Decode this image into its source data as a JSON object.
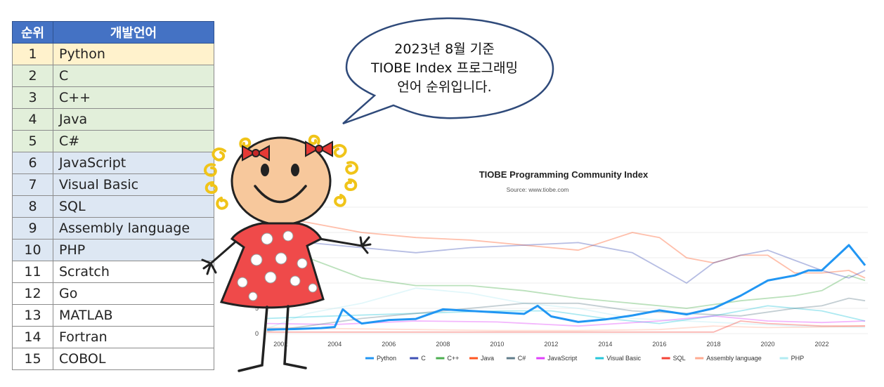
{
  "table": {
    "headers": {
      "rank": "순위",
      "language": "개발언어"
    },
    "rows": [
      {
        "rank": "1",
        "language": "Python"
      },
      {
        "rank": "2",
        "language": "C"
      },
      {
        "rank": "3",
        "language": "C++"
      },
      {
        "rank": "4",
        "language": "Java"
      },
      {
        "rank": "5",
        "language": "C#"
      },
      {
        "rank": "6",
        "language": "JavaScript"
      },
      {
        "rank": "7",
        "language": "Visual Basic"
      },
      {
        "rank": "8",
        "language": "SQL"
      },
      {
        "rank": "9",
        "language": "Assembly language"
      },
      {
        "rank": "10",
        "language": "PHP"
      },
      {
        "rank": "11",
        "language": "Scratch"
      },
      {
        "rank": "12",
        "language": "Go"
      },
      {
        "rank": "13",
        "language": "MATLAB"
      },
      {
        "rank": "14",
        "language": "Fortran"
      },
      {
        "rank": "15",
        "language": "COBOL"
      }
    ]
  },
  "bubble": {
    "lines": [
      "2023년 8월 기준",
      "TIOBE Index 프로그래밍",
      "언어 순위입니다."
    ]
  },
  "chart_data": {
    "type": "line",
    "title": "TIOBE Programming Community Index",
    "subtitle": "Source: www.tiobe.com",
    "xlabel": "",
    "ylabel": "",
    "x_ticks": [
      "2002",
      "2004",
      "2006",
      "2008",
      "2010",
      "2012",
      "2014",
      "2016",
      "2018",
      "2020",
      "2022"
    ],
    "y_ticks": [
      "0",
      "5"
    ],
    "xlim": [
      2001.5,
      2023.7
    ],
    "ylim": [
      0,
      25
    ],
    "legend_position": "bottom",
    "series": [
      {
        "name": "Python",
        "color": "#2196f3",
        "x": [
          2001.5,
          2002.5,
          2003.5,
          2004.0,
          2004.3,
          2004.7,
          2005.0,
          2006.0,
          2007.0,
          2008.0,
          2009.0,
          2010.0,
          2011.0,
          2011.5,
          2012.0,
          2013.0,
          2014.0,
          2015.0,
          2016.0,
          2017.0,
          2018.0,
          2019.0,
          2020.0,
          2021.0,
          2021.5,
          2022.0,
          2022.5,
          2023.0,
          2023.3,
          2023.6
        ],
        "y": [
          0.8,
          0.9,
          1.1,
          1.3,
          4.8,
          3.0,
          2.0,
          2.7,
          2.9,
          4.8,
          4.5,
          4.2,
          3.9,
          5.5,
          3.4,
          2.3,
          2.8,
          3.6,
          4.6,
          3.8,
          5.0,
          7.5,
          10.5,
          11.5,
          12.5,
          12.5,
          15.0,
          17.5,
          15.5,
          13.5
        ]
      },
      {
        "name": "C",
        "color": "#3f51b5",
        "x": [
          2001.5,
          2003,
          2005,
          2007,
          2009,
          2011,
          2013,
          2015,
          2017,
          2018,
          2019,
          2020,
          2021,
          2022,
          2023,
          2023.6
        ],
        "y": [
          20,
          18,
          17,
          16,
          17,
          17.5,
          18,
          16,
          10,
          14,
          15.5,
          16.5,
          14.5,
          12.5,
          11,
          12.5
        ]
      },
      {
        "name": "C++",
        "color": "#4caf50",
        "x": [
          2001.5,
          2003,
          2005,
          2007,
          2009,
          2011,
          2013,
          2015,
          2017,
          2019,
          2021,
          2022,
          2023,
          2023.6
        ],
        "y": [
          16,
          15,
          11,
          9.5,
          9.5,
          8.5,
          7,
          6,
          5,
          6.5,
          7.5,
          8.5,
          11.5,
          10.5
        ]
      },
      {
        "name": "Java",
        "color": "#ff5722",
        "x": [
          2001.5,
          2003,
          2005,
          2007,
          2009,
          2011,
          2013,
          2015,
          2016,
          2017,
          2018,
          2019,
          2020,
          2021,
          2022,
          2023,
          2023.6
        ],
        "y": [
          23,
          22,
          20,
          19,
          18.5,
          17.5,
          16.5,
          20,
          19,
          15,
          14,
          15.5,
          15.5,
          12,
          12,
          12.5,
          11
        ]
      },
      {
        "name": "C#",
        "color": "#607d8b",
        "x": [
          2001.5,
          2003,
          2005,
          2007,
          2009,
          2011,
          2013,
          2015,
          2017,
          2019,
          2021,
          2022,
          2023,
          2023.6
        ],
        "y": [
          0.5,
          1.5,
          3,
          4,
          5,
          6,
          6,
          4.5,
          4,
          3.5,
          5,
          5.5,
          7,
          6.5
        ]
      },
      {
        "name": "JavaScript",
        "color": "#e040fb",
        "x": [
          2001.5,
          2004,
          2007,
          2010,
          2013,
          2016,
          2018,
          2020,
          2022,
          2023.6
        ],
        "y": [
          2,
          1.8,
          2.5,
          2.3,
          1.5,
          2.5,
          3.5,
          2.5,
          2.2,
          2.5
        ]
      },
      {
        "name": "Visual Basic",
        "color": "#26c6da",
        "x": [
          2001.5,
          2004,
          2007,
          2010,
          2012,
          2014,
          2016,
          2018,
          2019,
          2020,
          2022,
          2023.6
        ],
        "y": [
          3,
          3.5,
          4,
          4.5,
          4.5,
          3,
          2,
          3.5,
          4.5,
          5.5,
          4.5,
          2.5
        ]
      },
      {
        "name": "SQL",
        "color": "#f44336",
        "x": [
          2001.5,
          2005,
          2010,
          2015,
          2018,
          2019,
          2020,
          2022,
          2023.6
        ],
        "y": [
          0.3,
          0.3,
          0.3,
          0.3,
          0.3,
          2.5,
          2,
          1.5,
          1.5
        ]
      },
      {
        "name": "Assembly language",
        "color": "#ffab91",
        "x": [
          2001.5,
          2004,
          2007,
          2010,
          2013,
          2016,
          2018,
          2020,
          2022,
          2023.6
        ],
        "y": [
          1.2,
          1,
          0.8,
          0.6,
          0.6,
          0.8,
          1.5,
          1.2,
          1.3,
          1.5
        ]
      },
      {
        "name": "PHP",
        "color": "#b2ebf2",
        "x": [
          2001.5,
          2003,
          2005,
          2007,
          2009,
          2011,
          2013,
          2015,
          2017,
          2019,
          2021,
          2023.6
        ],
        "y": [
          1,
          4,
          6,
          9,
          8,
          6,
          5,
          3,
          2.5,
          2,
          1.5,
          1.2
        ]
      }
    ]
  }
}
